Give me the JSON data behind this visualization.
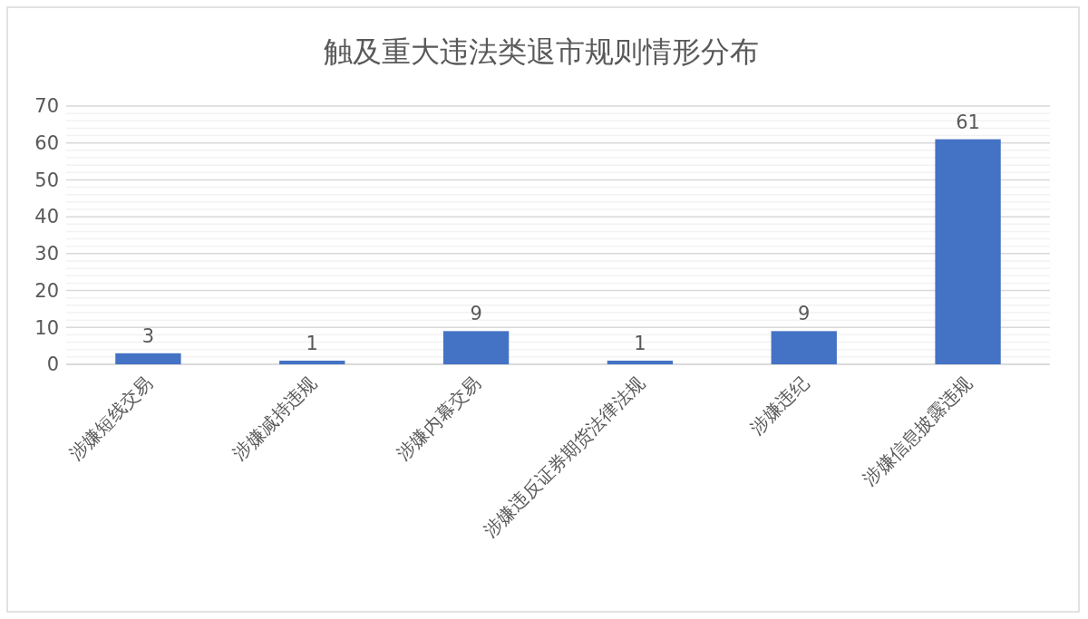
{
  "chart_data": {
    "type": "bar",
    "title": "触及重大违法类退市规则情形分布",
    "categories": [
      "涉嫌短线交易",
      "涉嫌减持违规",
      "涉嫌内幕交易",
      "涉嫌违反证券期货法律法规",
      "涉嫌违纪",
      "涉嫌信息披露违规"
    ],
    "values": [
      3,
      1,
      9,
      1,
      9,
      61
    ],
    "color": "#4472c4",
    "ylim": [
      0,
      70
    ],
    "yticks": [
      0,
      {
        "value": 2,
        "label": null
      },
      {
        "value": 4,
        "label": null
      },
      {
        "value": 6,
        "label": null
      },
      {
        "value": 8,
        "label": null
      },
      10,
      {
        "value": 12,
        "label": null
      },
      {
        "value": 14,
        "label": null
      },
      {
        "value": 16,
        "label": null
      },
      {
        "value": 18,
        "label": null
      },
      20,
      {
        "value": 22,
        "label": null
      },
      {
        "value": 24,
        "label": null
      },
      {
        "value": 26,
        "label": null
      },
      {
        "value": 28,
        "label": null
      },
      30,
      {
        "value": 32,
        "label": null
      },
      {
        "value": 34,
        "label": null
      },
      {
        "value": 36,
        "label": null
      },
      {
        "value": 38,
        "label": null
      },
      40,
      {
        "value": 42,
        "label": null
      },
      {
        "value": 44,
        "label": null
      },
      {
        "value": 46,
        "label": null
      },
      {
        "value": 48,
        "label": null
      },
      50,
      {
        "value": 52,
        "label": null
      },
      {
        "value": 54,
        "label": null
      },
      {
        "value": 56,
        "label": null
      },
      {
        "value": 58,
        "label": null
      },
      60,
      {
        "value": 62,
        "label": null
      },
      {
        "value": 64,
        "label": null
      },
      {
        "value": 66,
        "label": null
      },
      {
        "value": 68,
        "label": null
      },
      70
    ],
    "grid": "y",
    "data_labels": true
  }
}
